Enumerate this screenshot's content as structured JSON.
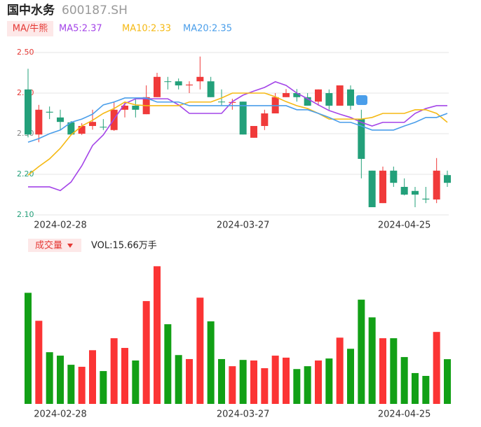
{
  "chart_data": [
    {
      "type": "candlestick",
      "title": "国中水务",
      "subtitle": "600187.SH",
      "legend_label": "MA/牛熊",
      "categories": [
        null,
        null,
        null,
        "2024-02-28",
        null,
        null,
        null,
        null,
        null,
        null,
        null,
        null,
        null,
        null,
        null,
        null,
        null,
        null,
        null,
        null,
        "2024-03-27",
        null,
        null,
        null,
        null,
        null,
        null,
        null,
        null,
        null,
        null,
        null,
        null,
        null,
        null,
        "2024-04-25",
        null,
        null,
        null,
        null
      ],
      "open": [
        2.409,
        2.298,
        2.354,
        2.34,
        2.328,
        2.3,
        2.319,
        2.317,
        2.309,
        2.359,
        2.369,
        2.348,
        2.39,
        2.429,
        2.429,
        2.419,
        2.429,
        2.429,
        2.379,
        2.376,
        2.379,
        2.29,
        2.319,
        2.35,
        2.39,
        2.4,
        2.39,
        2.379,
        2.4,
        2.369,
        2.409,
        2.336,
        2.209,
        2.129,
        2.209,
        2.169,
        2.159,
        2.14,
        2.138,
        2.198
      ],
      "high": [
        2.46,
        2.371,
        2.367,
        2.359,
        2.331,
        2.326,
        2.359,
        2.336,
        2.379,
        2.379,
        2.388,
        2.419,
        2.45,
        2.44,
        2.436,
        2.429,
        2.49,
        2.44,
        2.409,
        2.386,
        2.379,
        2.319,
        2.359,
        2.4,
        2.41,
        2.41,
        2.4,
        2.409,
        2.409,
        2.419,
        2.419,
        2.359,
        2.209,
        2.219,
        2.219,
        2.19,
        2.169,
        2.169,
        2.24,
        2.209
      ],
      "low": [
        2.291,
        2.279,
        2.336,
        2.31,
        2.298,
        2.297,
        2.31,
        2.309,
        2.307,
        2.34,
        2.34,
        2.348,
        2.39,
        2.409,
        2.409,
        2.4,
        2.409,
        2.39,
        2.369,
        2.359,
        2.298,
        2.29,
        2.309,
        2.35,
        2.39,
        2.379,
        2.369,
        2.369,
        2.359,
        2.369,
        2.359,
        2.19,
        2.119,
        2.129,
        2.169,
        2.148,
        2.119,
        2.129,
        2.129,
        2.169
      ],
      "close": [
        2.298,
        2.359,
        2.352,
        2.329,
        2.298,
        2.319,
        2.329,
        2.316,
        2.359,
        2.369,
        2.359,
        2.39,
        2.44,
        2.428,
        2.419,
        2.421,
        2.44,
        2.39,
        2.378,
        2.378,
        2.298,
        2.319,
        2.35,
        2.39,
        2.4,
        2.39,
        2.369,
        2.409,
        2.369,
        2.419,
        2.369,
        2.238,
        2.119,
        2.209,
        2.179,
        2.15,
        2.15,
        2.138,
        2.209,
        2.179
      ],
      "series": [
        {
          "name": "MA5:2.37",
          "color": "#a445e8",
          "values": [
            2.169,
            2.169,
            2.169,
            2.16,
            2.181,
            2.221,
            2.271,
            2.297,
            2.336,
            2.374,
            2.386,
            2.386,
            2.386,
            2.386,
            2.371,
            2.35,
            2.35,
            2.35,
            2.35,
            2.379,
            2.395,
            2.405,
            2.414,
            2.428,
            2.419,
            2.4,
            2.386,
            2.371,
            2.357,
            2.348,
            2.34,
            2.328,
            2.319,
            2.328,
            2.328,
            2.328,
            2.35,
            2.362,
            2.369,
            2.369
          ]
        },
        {
          "name": "MA10:2.33",
          "color": "#f5b914",
          "values": [
            2.198,
            2.219,
            2.238,
            2.264,
            2.297,
            2.319,
            2.333,
            2.35,
            2.362,
            2.378,
            2.371,
            2.369,
            2.369,
            2.369,
            2.369,
            2.378,
            2.378,
            2.378,
            2.388,
            2.4,
            2.4,
            2.4,
            2.4,
            2.391,
            2.379,
            2.369,
            2.362,
            2.35,
            2.336,
            2.336,
            2.336,
            2.336,
            2.34,
            2.35,
            2.35,
            2.35,
            2.359,
            2.359,
            2.35,
            2.328
          ]
        },
        {
          "name": "MA20:2.35",
          "color": "#4a9eea",
          "values": [
            2.279,
            2.288,
            2.3,
            2.309,
            2.328,
            2.336,
            2.348,
            2.371,
            2.378,
            2.388,
            2.388,
            2.388,
            2.378,
            2.378,
            2.378,
            2.369,
            2.369,
            2.369,
            2.369,
            2.369,
            2.369,
            2.369,
            2.369,
            2.369,
            2.369,
            2.359,
            2.359,
            2.35,
            2.34,
            2.328,
            2.328,
            2.319,
            2.309,
            2.309,
            2.309,
            2.319,
            2.328,
            2.34,
            2.34,
            2.35
          ]
        }
      ],
      "ylim": [
        2.1,
        2.5
      ],
      "yticks": [
        {
          "value": 2.5,
          "label": "2.50"
        },
        {
          "value": 2.4,
          "label": "2.40"
        },
        {
          "value": 2.3,
          "label": "2.30"
        },
        {
          "value": 2.2,
          "label": "2.20"
        },
        {
          "value": 2.1,
          "label": "2.10"
        }
      ],
      "grid": true,
      "up_color": "#f03a3a",
      "down_color": "#23a07a"
    },
    {
      "type": "bar",
      "title": "成交量",
      "label": "VOL:15.66万手",
      "categories": [
        null,
        null,
        null,
        "2024-02-28",
        null,
        null,
        null,
        null,
        null,
        null,
        null,
        null,
        null,
        null,
        null,
        null,
        null,
        null,
        null,
        null,
        "2024-03-27",
        null,
        null,
        null,
        null,
        null,
        null,
        null,
        null,
        null,
        null,
        null,
        null,
        null,
        null,
        "2024-04-25",
        null,
        null,
        null,
        null
      ],
      "values": [
        38.9,
        29.1,
        18.1,
        16.9,
        13.7,
        13.0,
        18.8,
        11.5,
        23.0,
        19.6,
        15.2,
        36.0,
        48.2,
        27.9,
        17.1,
        15.7,
        37.2,
        28.9,
        15.7,
        13.2,
        15.4,
        15.2,
        12.5,
        16.9,
        16.2,
        12.2,
        13.2,
        15.2,
        15.9,
        23.2,
        19.3,
        36.5,
        30.3,
        23.0,
        23.0,
        16.4,
        10.8,
        9.8,
        25.2,
        15.66
      ],
      "ylim": [
        0,
        50
      ],
      "up_color": "#fb3434",
      "down_color": "#12a016"
    }
  ]
}
